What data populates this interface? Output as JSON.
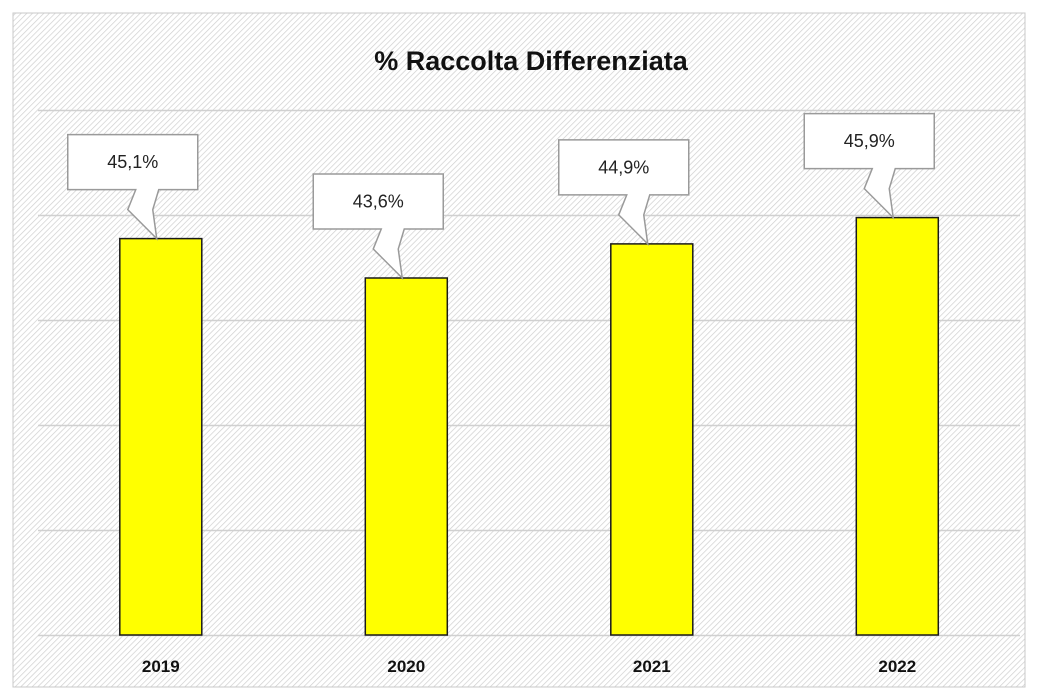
{
  "chart_data": {
    "type": "bar",
    "title": "% Raccolta  Differenziata",
    "categories": [
      "2019",
      "2020",
      "2021",
      "2022"
    ],
    "values": [
      45.1,
      43.6,
      44.9,
      45.9
    ],
    "data_labels": [
      "45,1%",
      "43,6%",
      "44,9%",
      "45,9%"
    ],
    "ylim": [
      30,
      50
    ],
    "grid": true,
    "legend": "none"
  },
  "colors": {
    "bar_fill": "#ffff00",
    "bar_stroke": "#1a1a1a",
    "gridline": "#d0d0d0",
    "callout_fill": "#ffffff",
    "callout_stroke": "#9a9a9a"
  }
}
